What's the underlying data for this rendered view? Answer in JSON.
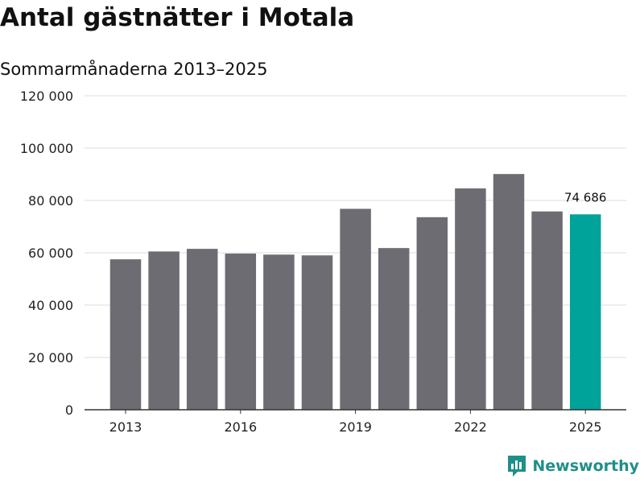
{
  "header": {
    "title": "Antal gästnätter i Motala",
    "subtitle": "Sommarmånaderna 2013–2025"
  },
  "brand": {
    "name": "Newsworthy",
    "icon": "newsworthy-logo-icon"
  },
  "colors": {
    "bar": "#6d6c72",
    "highlight": "#00a39a",
    "grid": "#dddddd",
    "axis": "#333333",
    "brand": "#1f8f89"
  },
  "chart_data": {
    "type": "bar",
    "title": "Antal gästnätter i Motala",
    "subtitle": "Sommarmånaderna 2013–2025",
    "categories": [
      "2013",
      "2014",
      "2015",
      "2016",
      "2017",
      "2018",
      "2019",
      "2020",
      "2021",
      "2022",
      "2023",
      "2024",
      "2025"
    ],
    "values": [
      57500,
      60500,
      61500,
      59700,
      59300,
      59000,
      76800,
      61800,
      73600,
      84600,
      90100,
      75800,
      74686
    ],
    "highlight_index": 12,
    "highlight_label": "74 686",
    "ylim": [
      0,
      120000
    ],
    "yticks": [
      0,
      20000,
      40000,
      60000,
      80000,
      100000,
      120000
    ],
    "ytick_labels": [
      "0",
      "20 000",
      "40 000",
      "60 000",
      "80 000",
      "100 000",
      "120 000"
    ],
    "xtick_labels": [
      "2013",
      "2016",
      "2019",
      "2022",
      "2025"
    ],
    "xlabel": "",
    "ylabel": "",
    "grid": true,
    "legend": "none"
  }
}
